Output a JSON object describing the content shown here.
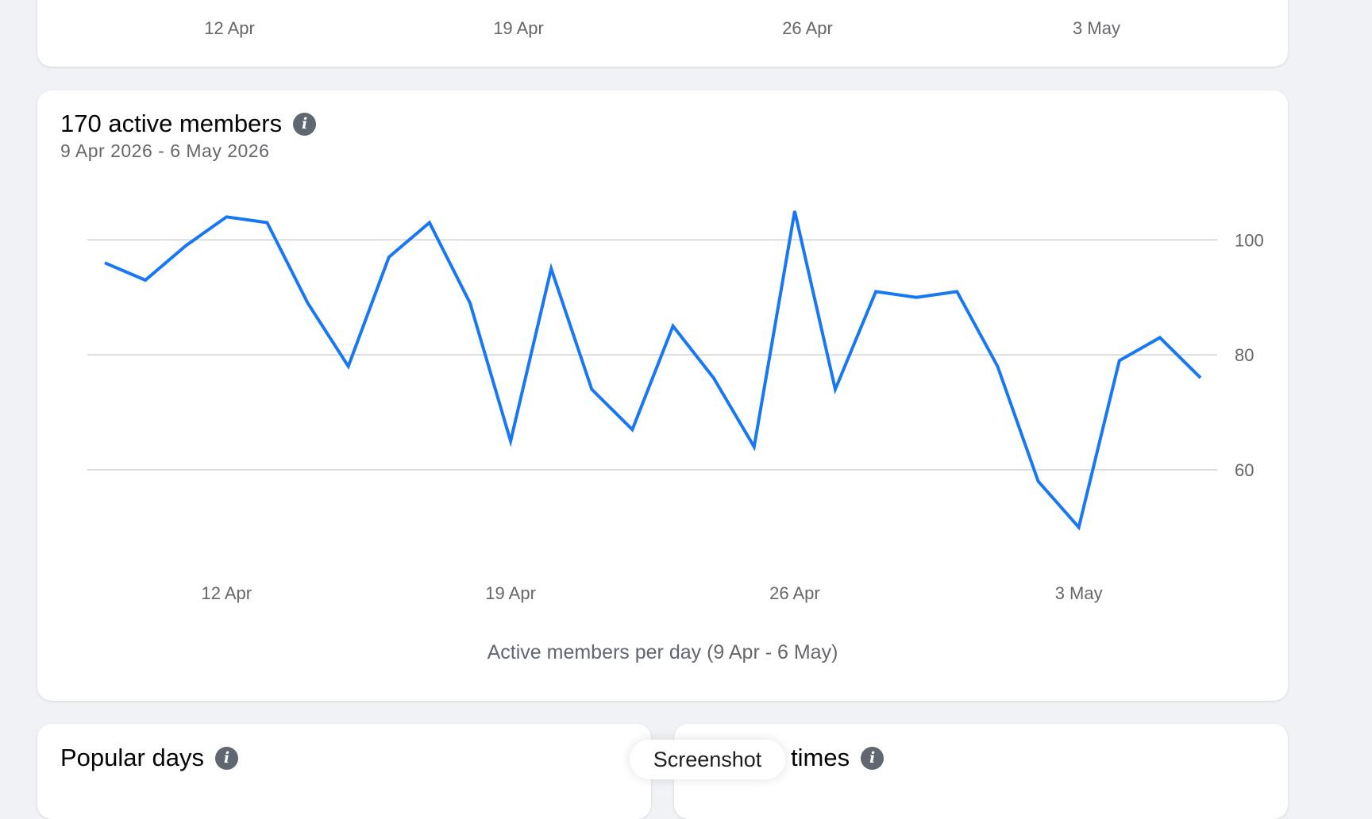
{
  "top_card": {
    "x_ticks": [
      "12 Apr",
      "19 Apr",
      "26 Apr",
      "3 May"
    ]
  },
  "active_members": {
    "title": "170 active members",
    "info_icon": "info-icon",
    "date_range": "9 Apr 2026 - 6 May 2026",
    "caption_main": "Active members per day",
    "caption_range": " (9 Apr - 6 May)"
  },
  "chart_data": {
    "type": "line",
    "x": [
      "9 Apr",
      "10 Apr",
      "11 Apr",
      "12 Apr",
      "13 Apr",
      "14 Apr",
      "15 Apr",
      "16 Apr",
      "17 Apr",
      "18 Apr",
      "19 Apr",
      "20 Apr",
      "21 Apr",
      "22 Apr",
      "23 Apr",
      "24 Apr",
      "25 Apr",
      "26 Apr",
      "27 Apr",
      "28 Apr",
      "29 Apr",
      "30 Apr",
      "1 May",
      "2 May",
      "3 May",
      "4 May",
      "5 May",
      "6 May"
    ],
    "series": [
      {
        "values": [
          96,
          93,
          99,
          104,
          103,
          89,
          78,
          97,
          103,
          89,
          65,
          95,
          74,
          67,
          85,
          76,
          64,
          105,
          74,
          91,
          90,
          91,
          78,
          58,
          50,
          79,
          83,
          76
        ],
        "color": "#1877f2"
      }
    ],
    "x_tick_labels": [
      "12 Apr",
      "19 Apr",
      "26 Apr",
      "3 May"
    ],
    "y_ticks": [
      60,
      80,
      100
    ],
    "ylim": [
      50,
      106
    ],
    "y_axis_position": "right",
    "grid": true,
    "xlabel": "Active members per day (9 Apr - 6 May)",
    "ylabel": ""
  },
  "popular_days": {
    "title": "Popular days",
    "info_icon": "info-icon"
  },
  "popular_times": {
    "title": "times",
    "info_icon": "info-icon"
  },
  "overlay": {
    "screenshot_label": "Screenshot"
  }
}
